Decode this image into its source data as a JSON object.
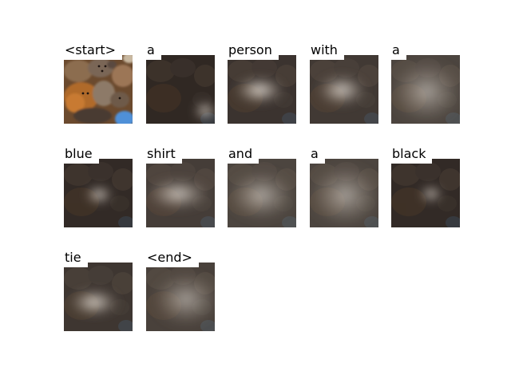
{
  "figure": {
    "frames": [
      {
        "word": "<start>",
        "kind": "image"
      },
      {
        "word": "a",
        "kind": "attention",
        "focus": "lower-right"
      },
      {
        "word": "person",
        "kind": "attention",
        "focus": "center-bright"
      },
      {
        "word": "with",
        "kind": "attention",
        "focus": "center"
      },
      {
        "word": "a",
        "kind": "attention",
        "focus": "diffuse"
      },
      {
        "word": "blue",
        "kind": "attention",
        "focus": "center-small"
      },
      {
        "word": "shirt",
        "kind": "attention",
        "focus": "center-wide"
      },
      {
        "word": "and",
        "kind": "attention",
        "focus": "diffuse-center"
      },
      {
        "word": "a",
        "kind": "attention",
        "focus": "diffuse"
      },
      {
        "word": "black",
        "kind": "attention",
        "focus": "center-right-small"
      },
      {
        "word": "tie",
        "kind": "attention",
        "focus": "center-left"
      },
      {
        "word": "<end>",
        "kind": "attention",
        "focus": "diffuse-right"
      }
    ]
  }
}
